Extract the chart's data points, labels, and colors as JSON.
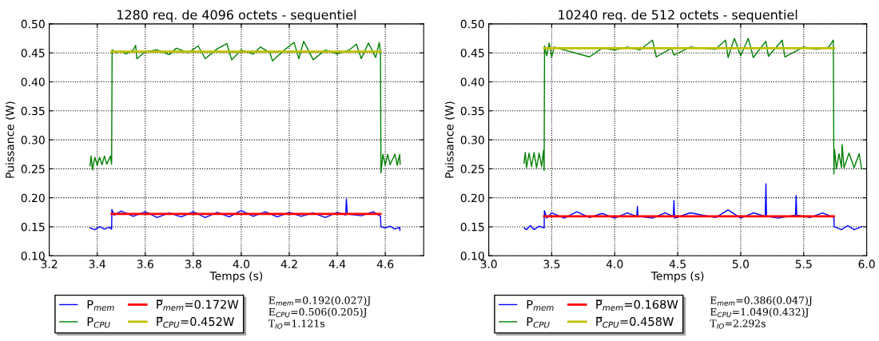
{
  "chart_data": [
    {
      "type": "line",
      "title": "1280 req. de 4096 octets - sequentiel",
      "xlabel": "Temps (s)",
      "ylabel": "Puissance (W)",
      "xlim": [
        3.2,
        4.76
      ],
      "xticks": [
        3.2,
        3.4,
        3.6,
        3.8,
        {
          "value": 4,
          "label": "4.0"
        },
        4.2,
        4.4,
        4.6
      ],
      "ylim": [
        0.1,
        0.5
      ],
      "yticks": [
        {
          "value": 0.1,
          "label": "0.10"
        },
        {
          "value": 0.15,
          "label": "0.15"
        },
        {
          "value": 0.2,
          "label": "0.20"
        },
        {
          "value": 0.25,
          "label": "0.25"
        },
        {
          "value": 0.3,
          "label": "0.30"
        },
        {
          "value": 0.35,
          "label": "0.35"
        },
        {
          "value": 0.4,
          "label": "0.40"
        },
        {
          "value": 0.45,
          "label": "0.45"
        },
        {
          "value": 0.5,
          "label": "0.50"
        }
      ],
      "grid": true,
      "legend": "bottom",
      "line_style": "solid",
      "marker": "none",
      "series": [
        {
          "name": "P$_{mem}$",
          "color": "#0000ff",
          "x": [
            3.37,
            3.39,
            3.41,
            3.43,
            3.45,
            3.46,
            3.461,
            3.47,
            3.5,
            3.55,
            3.6,
            3.65,
            3.7,
            3.75,
            3.8,
            3.85,
            3.9,
            3.95,
            4.0,
            4.05,
            4.1,
            4.15,
            4.2,
            4.25,
            4.3,
            4.35,
            4.4,
            4.435,
            4.438,
            4.442,
            4.5,
            4.55,
            4.58,
            4.582,
            4.6,
            4.62,
            4.64,
            4.66,
            4.661
          ],
          "values": [
            0.148,
            0.145,
            0.15,
            0.146,
            0.149,
            0.146,
            0.18,
            0.17,
            0.177,
            0.168,
            0.176,
            0.166,
            0.174,
            0.167,
            0.176,
            0.166,
            0.175,
            0.167,
            0.178,
            0.168,
            0.176,
            0.167,
            0.175,
            0.168,
            0.174,
            0.166,
            0.175,
            0.17,
            0.198,
            0.172,
            0.169,
            0.176,
            0.168,
            0.15,
            0.148,
            0.151,
            0.146,
            0.149,
            0.144
          ]
        },
        {
          "name": "P$_{CPU}$",
          "color": "#008000",
          "x": [
            3.37,
            3.375,
            3.38,
            3.39,
            3.4,
            3.41,
            3.42,
            3.43,
            3.44,
            3.455,
            3.46,
            3.462,
            3.48,
            3.5,
            3.52,
            3.55,
            3.56,
            3.565,
            3.6,
            3.65,
            3.7,
            3.73,
            3.78,
            3.82,
            3.85,
            3.9,
            3.94,
            3.96,
            4.0,
            4.05,
            4.08,
            4.12,
            4.13,
            4.18,
            4.22,
            4.24,
            4.26,
            4.3,
            4.35,
            4.4,
            4.45,
            4.48,
            4.5,
            4.53,
            4.56,
            4.575,
            4.58,
            4.582,
            4.59,
            4.6,
            4.61,
            4.62,
            4.64,
            4.65,
            4.66,
            4.662
          ],
          "values": [
            0.255,
            0.272,
            0.248,
            0.27,
            0.256,
            0.27,
            0.257,
            0.272,
            0.258,
            0.272,
            0.258,
            0.455,
            0.45,
            0.453,
            0.448,
            0.455,
            0.463,
            0.44,
            0.452,
            0.455,
            0.447,
            0.458,
            0.45,
            0.462,
            0.44,
            0.457,
            0.466,
            0.438,
            0.455,
            0.448,
            0.46,
            0.45,
            0.436,
            0.455,
            0.468,
            0.44,
            0.47,
            0.438,
            0.455,
            0.448,
            0.455,
            0.465,
            0.44,
            0.467,
            0.442,
            0.468,
            0.45,
            0.243,
            0.275,
            0.256,
            0.275,
            0.257,
            0.275,
            0.256,
            0.275,
            0.258
          ]
        },
        {
          "name": "P̅$_{mem}$=0.172W",
          "color": "#ff0000",
          "x": [
            3.46,
            4.58
          ],
          "values": [
            0.172,
            0.172
          ]
        },
        {
          "name": "P̅$_{CPU}$=0.452W",
          "color": "#bfbf00",
          "x": [
            3.46,
            4.58
          ],
          "values": [
            0.452,
            0.452
          ]
        }
      ],
      "annotations": [
        "E$_{mem}$=0.192(0.027)J",
        "E$_{CPU}$=0.506(0.205)J",
        "T$_{IO}$=1.121s"
      ]
    },
    {
      "type": "line",
      "title": "10240 req. de 512 octets - sequentiel",
      "xlabel": "Temps (s)",
      "ylabel": "Puissance (W)",
      "xlim": [
        3.0,
        6.0
      ],
      "xticks": [
        {
          "value": 3,
          "label": "3.0"
        },
        3.5,
        {
          "value": 4,
          "label": "4.0"
        },
        4.5,
        {
          "value": 5,
          "label": "5.0"
        },
        5.5,
        {
          "value": 6,
          "label": "6.0"
        }
      ],
      "ylim": [
        0.1,
        0.5
      ],
      "yticks": [
        {
          "value": 0.1,
          "label": "0.10"
        },
        {
          "value": 0.15,
          "label": "0.15"
        },
        {
          "value": 0.2,
          "label": "0.20"
        },
        {
          "value": 0.25,
          "label": "0.25"
        },
        {
          "value": 0.3,
          "label": "0.30"
        },
        {
          "value": 0.35,
          "label": "0.35"
        },
        {
          "value": 0.4,
          "label": "0.40"
        },
        {
          "value": 0.45,
          "label": "0.45"
        },
        {
          "value": 0.5,
          "label": "0.50"
        }
      ],
      "grid": true,
      "legend": "bottom",
      "line_style": "solid",
      "marker": "none",
      "series": [
        {
          "name": "P$_{mem}$",
          "color": "#0000ff",
          "x": [
            3.28,
            3.3,
            3.33,
            3.36,
            3.4,
            3.44,
            3.442,
            3.46,
            3.5,
            3.6,
            3.7,
            3.8,
            3.9,
            4.0,
            4.1,
            4.175,
            4.18,
            4.185,
            4.3,
            4.4,
            4.465,
            4.47,
            4.475,
            4.6,
            4.8,
            4.9,
            5.0,
            5.1,
            5.195,
            5.2,
            5.205,
            5.3,
            5.435,
            5.44,
            5.445,
            5.55,
            5.65,
            5.74,
            5.742,
            5.8,
            5.85,
            5.9,
            5.96
          ],
          "values": [
            0.148,
            0.145,
            0.152,
            0.145,
            0.151,
            0.148,
            0.178,
            0.165,
            0.174,
            0.165,
            0.176,
            0.166,
            0.173,
            0.165,
            0.174,
            0.168,
            0.185,
            0.168,
            0.165,
            0.174,
            0.168,
            0.195,
            0.165,
            0.174,
            0.166,
            0.179,
            0.165,
            0.174,
            0.168,
            0.224,
            0.168,
            0.165,
            0.17,
            0.204,
            0.17,
            0.166,
            0.174,
            0.166,
            0.15,
            0.145,
            0.152,
            0.145,
            0.15
          ]
        },
        {
          "name": "P$_{CPU}$",
          "color": "#008000",
          "x": [
            3.28,
            3.29,
            3.3,
            3.32,
            3.34,
            3.36,
            3.38,
            3.4,
            3.42,
            3.435,
            3.44,
            3.443,
            3.46,
            3.48,
            3.5,
            3.52,
            3.6,
            3.8,
            3.9,
            4.0,
            4.1,
            4.2,
            4.3,
            4.33,
            4.45,
            4.47,
            4.6,
            4.8,
            4.88,
            4.9,
            4.95,
            5.0,
            5.06,
            5.1,
            5.2,
            5.22,
            5.33,
            5.35,
            5.5,
            5.6,
            5.7,
            5.735,
            5.74,
            5.745,
            5.76,
            5.78,
            5.8,
            5.805,
            5.82,
            5.86,
            5.9,
            5.94,
            5.96
          ],
          "values": [
            0.26,
            0.278,
            0.252,
            0.277,
            0.254,
            0.278,
            0.252,
            0.277,
            0.254,
            0.282,
            0.247,
            0.462,
            0.445,
            0.467,
            0.443,
            0.46,
            0.455,
            0.443,
            0.458,
            0.455,
            0.46,
            0.455,
            0.472,
            0.443,
            0.458,
            0.446,
            0.46,
            0.456,
            0.472,
            0.442,
            0.475,
            0.445,
            0.475,
            0.442,
            0.47,
            0.444,
            0.472,
            0.443,
            0.46,
            0.456,
            0.46,
            0.472,
            0.241,
            0.283,
            0.25,
            0.276,
            0.252,
            0.292,
            0.252,
            0.277,
            0.252,
            0.276,
            0.25
          ]
        },
        {
          "name": "P̅$_{mem}$=0.168W",
          "color": "#ff0000",
          "x": [
            3.44,
            5.74
          ],
          "values": [
            0.168,
            0.168
          ]
        },
        {
          "name": "P̅$_{CPU}$=0.458W",
          "color": "#bfbf00",
          "x": [
            3.44,
            5.74
          ],
          "values": [
            0.458,
            0.458
          ]
        }
      ],
      "annotations": [
        "E$_{mem}$=0.386(0.047)J",
        "E$_{CPU}$=1.049(0.432)J",
        "T$_{IO}$=2.292s"
      ]
    }
  ]
}
